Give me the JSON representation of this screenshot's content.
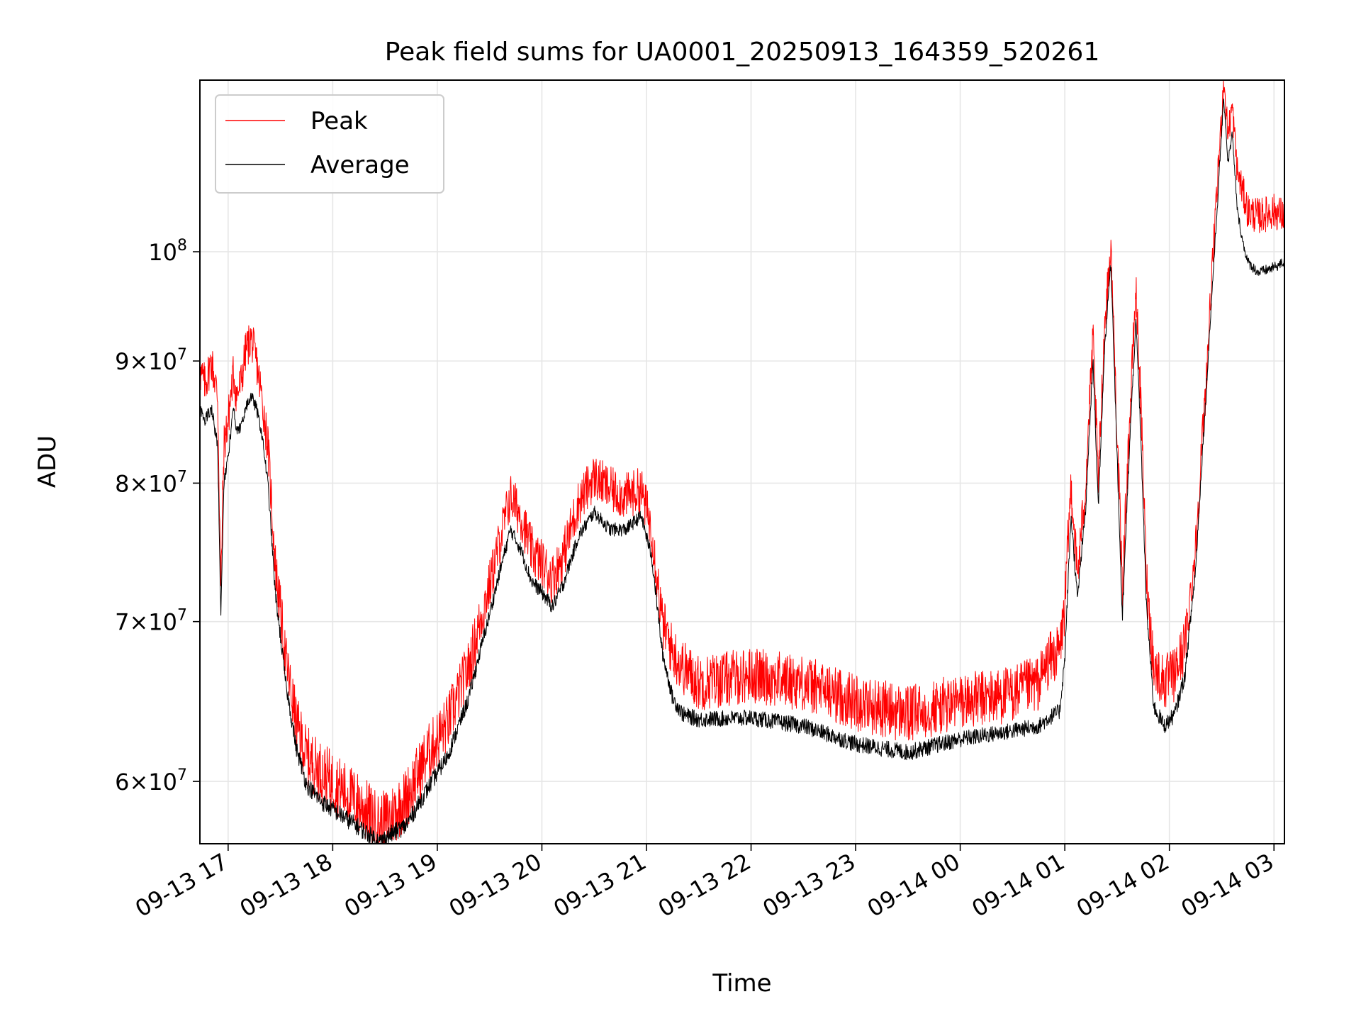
{
  "chart_data": {
    "type": "line",
    "title": "Peak field sums for UA0001_20250913_164359_520261",
    "xlabel": "Time",
    "ylabel": "ADU",
    "x_unit": "hours since 2025-09-13 16:00",
    "xlim": [
      16.73,
      27.1
    ],
    "yscale": "log",
    "ylim": [
      56500000,
      118000000
    ],
    "grid": true,
    "legend_position": "upper-left",
    "colors": {
      "peak": "#ff0000",
      "average": "#000000",
      "grid": "#e6e6e6"
    },
    "x_ticks": [
      {
        "value": 17,
        "label": "09-13 17"
      },
      {
        "value": 18,
        "label": "09-13 18"
      },
      {
        "value": 19,
        "label": "09-13 19"
      },
      {
        "value": 20,
        "label": "09-13 20"
      },
      {
        "value": 21,
        "label": "09-13 21"
      },
      {
        "value": 22,
        "label": "09-13 22"
      },
      {
        "value": 23,
        "label": "09-13 23"
      },
      {
        "value": 24,
        "label": "09-14 00"
      },
      {
        "value": 25,
        "label": "09-14 01"
      },
      {
        "value": 26,
        "label": "09-14 02"
      },
      {
        "value": 27,
        "label": "09-14 03"
      }
    ],
    "y_ticks": [
      {
        "value": 60000000,
        "mantissa": "6",
        "base": "10",
        "exp": "7"
      },
      {
        "value": 70000000,
        "mantissa": "7",
        "base": "10",
        "exp": "7"
      },
      {
        "value": 80000000,
        "mantissa": "8",
        "base": "10",
        "exp": "7"
      },
      {
        "value": 90000000,
        "mantissa": "9",
        "base": "10",
        "exp": "7"
      },
      {
        "value": 100000000,
        "mantissa": "",
        "base": "10",
        "exp": "8"
      }
    ],
    "series": [
      {
        "name": "Peak",
        "noise": 1800000,
        "x": [
          16.73,
          16.78,
          16.84,
          16.9,
          16.93,
          16.96,
          17.0,
          17.05,
          17.08,
          17.12,
          17.17,
          17.22,
          17.27,
          17.32,
          17.38,
          17.45,
          17.55,
          17.65,
          17.75,
          17.9,
          18.1,
          18.3,
          18.45,
          18.55,
          18.7,
          18.9,
          19.1,
          19.3,
          19.5,
          19.7,
          19.8,
          19.9,
          20.0,
          20.1,
          20.2,
          20.35,
          20.5,
          20.65,
          20.8,
          20.95,
          21.05,
          21.15,
          21.25,
          21.35,
          21.5,
          22.0,
          22.5,
          23.0,
          23.5,
          24.0,
          24.5,
          24.75,
          24.85,
          24.95,
          25.0,
          25.06,
          25.12,
          25.2,
          25.27,
          25.32,
          25.38,
          25.44,
          25.5,
          25.55,
          25.62,
          25.68,
          25.72,
          25.78,
          25.85,
          25.95,
          26.05,
          26.15,
          26.25,
          26.35,
          26.45,
          26.52,
          26.56,
          26.6,
          26.65,
          26.7,
          26.75,
          26.85,
          27.0,
          27.1
        ],
        "y": [
          89000000,
          88000000,
          90000000,
          87000000,
          72000000,
          83000000,
          85000000,
          89000000,
          87000000,
          88000000,
          91000000,
          92000000,
          90000000,
          87000000,
          83000000,
          74000000,
          67500000,
          63500000,
          61500000,
          60500000,
          59500000,
          58500000,
          57500000,
          58000000,
          59000000,
          61500000,
          63500000,
          67000000,
          72500000,
          79000000,
          77500000,
          75000000,
          74000000,
          73000000,
          74500000,
          78500000,
          80500000,
          79500000,
          79000000,
          79500000,
          76500000,
          70000000,
          68000000,
          67000000,
          66000000,
          66500000,
          66000000,
          64800000,
          64000000,
          64800000,
          65300000,
          66000000,
          67500000,
          68000000,
          71000000,
          80000000,
          73000000,
          80000000,
          92000000,
          80000000,
          93000000,
          100500000,
          84000000,
          72000000,
          85000000,
          96500000,
          88000000,
          73000000,
          67000000,
          66000000,
          66500000,
          68500000,
          75000000,
          88000000,
          105000000,
          118000000,
          112000000,
          115000000,
          108000000,
          106000000,
          104000000,
          103500000,
          104000000,
          103500000
        ]
      },
      {
        "name": "Average",
        "noise": 500000,
        "x": [
          16.73,
          16.78,
          16.84,
          16.9,
          16.93,
          16.96,
          17.0,
          17.05,
          17.08,
          17.12,
          17.17,
          17.22,
          17.27,
          17.32,
          17.38,
          17.45,
          17.55,
          17.65,
          17.75,
          17.9,
          18.1,
          18.3,
          18.45,
          18.55,
          18.7,
          18.9,
          19.1,
          19.3,
          19.5,
          19.7,
          19.8,
          19.9,
          20.0,
          20.1,
          20.2,
          20.35,
          20.5,
          20.65,
          20.8,
          20.95,
          21.05,
          21.15,
          21.25,
          21.35,
          21.5,
          22.0,
          22.5,
          23.0,
          23.5,
          24.0,
          24.5,
          24.75,
          24.85,
          24.95,
          25.0,
          25.06,
          25.12,
          25.2,
          25.27,
          25.32,
          25.38,
          25.44,
          25.5,
          25.55,
          25.62,
          25.68,
          25.72,
          25.78,
          25.85,
          25.95,
          26.05,
          26.15,
          26.25,
          26.35,
          26.45,
          26.52,
          26.56,
          26.6,
          26.65,
          26.7,
          26.75,
          26.85,
          27.0,
          27.1
        ],
        "y": [
          86000000,
          85000000,
          86000000,
          83000000,
          70000000,
          80000000,
          82000000,
          86000000,
          84000000,
          84500000,
          86000000,
          87000000,
          86000000,
          84000000,
          80000000,
          72000000,
          66000000,
          62000000,
          59800000,
          58800000,
          58000000,
          57200000,
          56600000,
          57000000,
          57500000,
          59500000,
          61500000,
          65000000,
          70500000,
          76500000,
          75000000,
          72800000,
          72000000,
          71000000,
          72500000,
          76000000,
          77800000,
          76500000,
          76500000,
          77500000,
          74500000,
          68000000,
          65000000,
          64000000,
          63700000,
          63800000,
          63300000,
          62200000,
          61700000,
          62500000,
          63000000,
          63300000,
          63800000,
          64200000,
          67500000,
          77500000,
          71500000,
          78000000,
          90000000,
          78000000,
          91000000,
          99000000,
          82000000,
          70000000,
          83000000,
          93500000,
          85000000,
          71000000,
          64500000,
          63300000,
          64000000,
          66500000,
          73500000,
          87000000,
          103000000,
          116000000,
          109000000,
          112000000,
          104000000,
          101000000,
          99000000,
          98000000,
          98500000,
          99000000
        ]
      }
    ]
  }
}
